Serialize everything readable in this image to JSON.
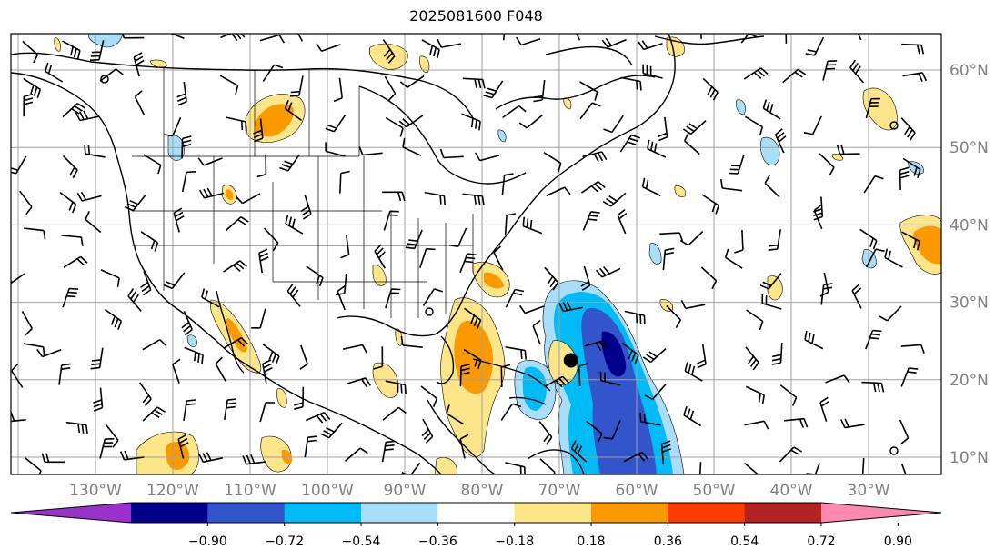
{
  "title": "2025081600 F048",
  "map": {
    "lon_labels": [
      "130°W",
      "120°W",
      "110°W",
      "100°W",
      "90°W",
      "80°W",
      "70°W",
      "60°W",
      "50°W",
      "40°W",
      "30°W"
    ],
    "lat_labels": [
      "60°N",
      "50°N",
      "40°N",
      "30°N",
      "20°N",
      "10°N"
    ],
    "label_color": "#808080",
    "grid_color": "#a0a0a0",
    "storm_marker": {
      "lon": -68.5,
      "lat": 22.5
    }
  },
  "colorbar": {
    "ticks": [
      "−0.90",
      "−0.72",
      "−0.54",
      "−0.36",
      "−0.18",
      "0.18",
      "0.36",
      "0.54",
      "0.72",
      "0.90"
    ],
    "colors": [
      "#9932cc",
      "#00008b",
      "#3355cc",
      "#00bbf5",
      "#aaddf8",
      "#ffffff",
      "#fde68a",
      "#fa9a00",
      "#fa3c00",
      "#b22222",
      "#ff88b0"
    ]
  }
}
